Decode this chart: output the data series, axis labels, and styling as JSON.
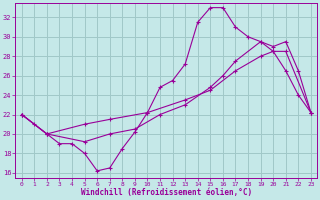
{
  "xlabel": "Windchill (Refroidissement éolien,°C)",
  "background_color": "#c5e8e8",
  "grid_color": "#a0c8c8",
  "line_color": "#990099",
  "xlim": [
    -0.5,
    23.5
  ],
  "ylim": [
    15.5,
    33.5
  ],
  "yticks": [
    16,
    18,
    20,
    22,
    24,
    26,
    28,
    30,
    32
  ],
  "xticks": [
    0,
    1,
    2,
    3,
    4,
    5,
    6,
    7,
    8,
    9,
    10,
    11,
    12,
    13,
    14,
    15,
    16,
    17,
    18,
    19,
    20,
    21,
    22,
    23
  ],
  "line1_x": [
    0,
    1,
    2,
    3,
    4,
    5,
    6,
    7,
    8,
    9,
    10,
    11,
    12,
    13,
    14,
    15,
    16,
    17,
    18,
    19,
    20,
    21,
    22,
    23
  ],
  "line1_y": [
    22.0,
    21.0,
    20.0,
    19.0,
    19.0,
    18.0,
    16.2,
    16.5,
    18.5,
    20.2,
    22.2,
    24.8,
    25.5,
    27.2,
    31.5,
    33.0,
    33.0,
    31.0,
    30.0,
    29.5,
    28.5,
    26.5,
    24.0,
    22.2
  ],
  "line2_x": [
    0,
    2,
    5,
    7,
    9,
    11,
    13,
    15,
    16,
    17,
    19,
    20,
    21,
    22,
    23
  ],
  "line2_y": [
    22.0,
    20.0,
    19.2,
    20.0,
    20.5,
    22.0,
    23.0,
    24.8,
    26.0,
    27.5,
    29.5,
    29.0,
    29.5,
    26.5,
    22.2
  ],
  "line3_x": [
    0,
    2,
    5,
    7,
    10,
    13,
    15,
    17,
    19,
    20,
    21,
    23
  ],
  "line3_y": [
    22.0,
    20.0,
    21.0,
    21.5,
    22.2,
    23.5,
    24.5,
    26.5,
    28.0,
    28.5,
    28.5,
    22.2
  ]
}
